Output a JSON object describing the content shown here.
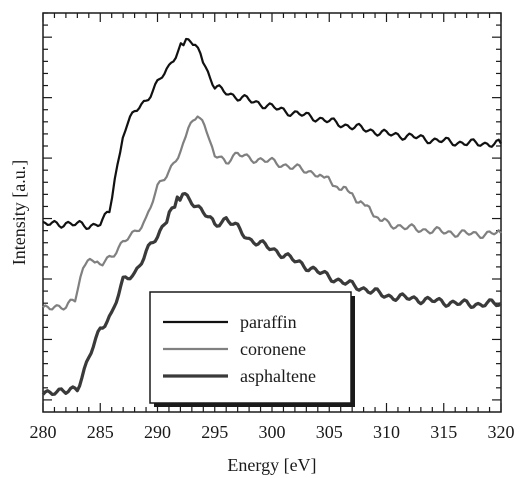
{
  "chart_data": {
    "type": "line",
    "xlabel": "Energy [eV]",
    "ylabel": "Intensity [a.u.]",
    "xlim": [
      280,
      320
    ],
    "ylim": [
      -0.1,
      3.2
    ],
    "x_ticks": [
      "280",
      "285",
      "290",
      "295",
      "300",
      "305",
      "310",
      "315",
      "320"
    ],
    "grid": false,
    "y_tick_labels_shown": false,
    "legend": {
      "position": "bottom-center",
      "frame": true
    },
    "series": [
      {
        "name": "paraffin",
        "color": "#111111",
        "width": 2.2,
        "points": [
          [
            280,
            1.45
          ],
          [
            282,
            1.46
          ],
          [
            284,
            1.44
          ],
          [
            285,
            1.46
          ],
          [
            285.8,
            1.55
          ],
          [
            286.5,
            1.95
          ],
          [
            287.2,
            2.25
          ],
          [
            288,
            2.38
          ],
          [
            289,
            2.48
          ],
          [
            290,
            2.62
          ],
          [
            291,
            2.75
          ],
          [
            291.8,
            2.9
          ],
          [
            292.5,
            2.98
          ],
          [
            293.3,
            2.96
          ],
          [
            294.2,
            2.75
          ],
          [
            295,
            2.58
          ],
          [
            296,
            2.55
          ],
          [
            297,
            2.5
          ],
          [
            298,
            2.48
          ],
          [
            300,
            2.42
          ],
          [
            302,
            2.37
          ],
          [
            304,
            2.33
          ],
          [
            306,
            2.28
          ],
          [
            308,
            2.24
          ],
          [
            310,
            2.2
          ],
          [
            312,
            2.18
          ],
          [
            314,
            2.15
          ],
          [
            316,
            2.13
          ],
          [
            318,
            2.12
          ],
          [
            320,
            2.12
          ]
        ]
      },
      {
        "name": "coronene",
        "color": "#808080",
        "width": 2.2,
        "points": [
          [
            280,
            0.74
          ],
          [
            281,
            0.78
          ],
          [
            282,
            0.77
          ],
          [
            282.8,
            0.82
          ],
          [
            283.5,
            1.1
          ],
          [
            284.3,
            1.15
          ],
          [
            285.2,
            1.12
          ],
          [
            286,
            1.2
          ],
          [
            287,
            1.3
          ],
          [
            288,
            1.38
          ],
          [
            289,
            1.5
          ],
          [
            290,
            1.75
          ],
          [
            291,
            1.9
          ],
          [
            292,
            2.05
          ],
          [
            292.7,
            2.25
          ],
          [
            293.5,
            2.35
          ],
          [
            294.3,
            2.22
          ],
          [
            295,
            2.02
          ],
          [
            296,
            1.98
          ],
          [
            297,
            2.03
          ],
          [
            298,
            2.0
          ],
          [
            300,
            1.97
          ],
          [
            302,
            1.92
          ],
          [
            304,
            1.87
          ],
          [
            305.5,
            1.78
          ],
          [
            307,
            1.7
          ],
          [
            308.5,
            1.57
          ],
          [
            310,
            1.46
          ],
          [
            312,
            1.42
          ],
          [
            314,
            1.4
          ],
          [
            316,
            1.38
          ],
          [
            318,
            1.37
          ],
          [
            320,
            1.38
          ]
        ]
      },
      {
        "name": "asphaltene",
        "color": "#3a3a3a",
        "width": 3.2,
        "points": [
          [
            280,
            0.05
          ],
          [
            281,
            0.08
          ],
          [
            282,
            0.06
          ],
          [
            283,
            0.1
          ],
          [
            284,
            0.35
          ],
          [
            285,
            0.58
          ],
          [
            286,
            0.72
          ],
          [
            287,
            0.98
          ],
          [
            288,
            1.05
          ],
          [
            289,
            1.22
          ],
          [
            290,
            1.35
          ],
          [
            290.8,
            1.5
          ],
          [
            291.5,
            1.62
          ],
          [
            292.2,
            1.7
          ],
          [
            293,
            1.65
          ],
          [
            294,
            1.55
          ],
          [
            295,
            1.45
          ],
          [
            296,
            1.5
          ],
          [
            297,
            1.42
          ],
          [
            298,
            1.33
          ],
          [
            300,
            1.25
          ],
          [
            302,
            1.15
          ],
          [
            304,
            1.06
          ],
          [
            306,
            0.98
          ],
          [
            308,
            0.92
          ],
          [
            310,
            0.86
          ],
          [
            312,
            0.84
          ],
          [
            314,
            0.82
          ],
          [
            316,
            0.8
          ],
          [
            318,
            0.79
          ],
          [
            320,
            0.8
          ]
        ]
      }
    ]
  }
}
